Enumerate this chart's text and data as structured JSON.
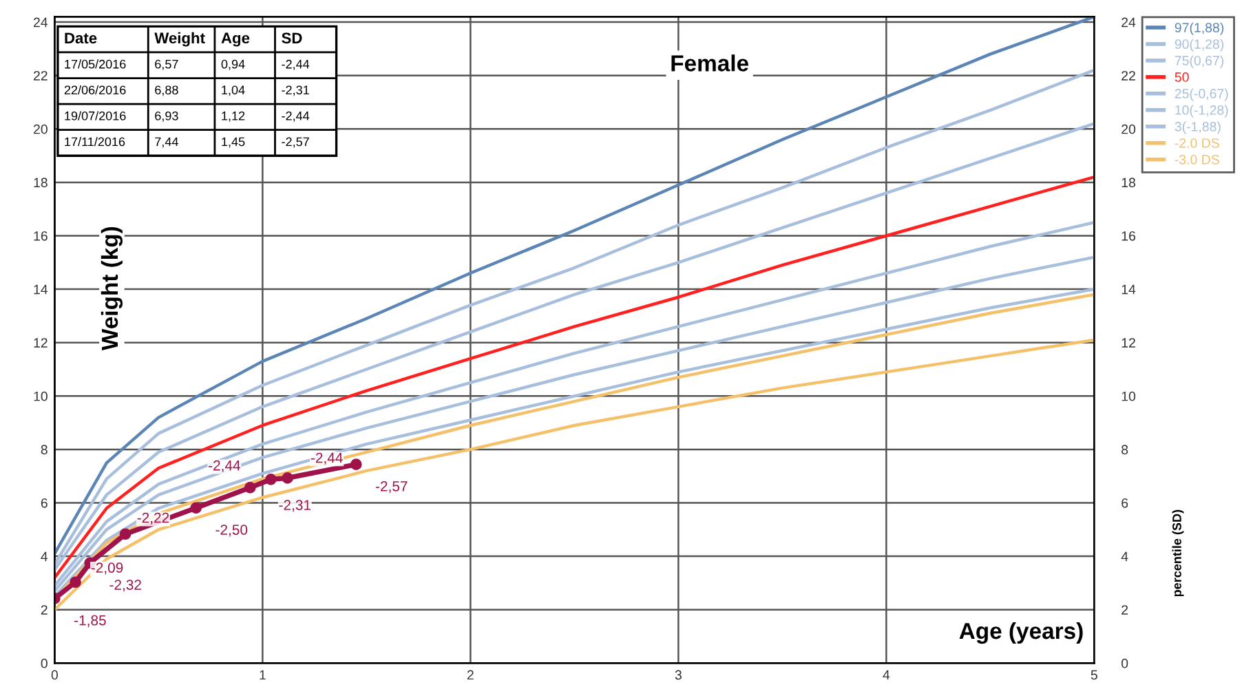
{
  "chart_data": {
    "type": "line",
    "title": "Female",
    "xlabel": "Age (years)",
    "ylabel": "Weight (kg)",
    "y2label": "percentile (SD)",
    "annotations": [
      "Date",
      "Weight",
      "Age",
      "SD",
      "17/05/2016",
      "6,57",
      "0,94",
      "-2,44",
      "22/06/2016",
      "6,88",
      "1,04",
      "-2,31",
      "19/07/2016",
      "6,93",
      "1,12",
      "-2,44",
      "17/11/2016",
      "7,44",
      "1,45",
      "-2,57",
      {
        "text": "-1,85",
        "x": 0,
        "y": 2.42
      },
      {
        "text": "-2,09",
        "x": 0.1,
        "y": 3.03
      },
      {
        "text": "-2,32",
        "x": 0.17,
        "y": 3.75
      },
      {
        "text": "-2,22",
        "x": 0.34,
        "y": 4.83
      },
      {
        "text": "-2,50",
        "x": 0.68,
        "y": 5.81
      },
      {
        "text": "-2,44",
        "x": 0.94,
        "y": 6.57
      },
      {
        "text": "-2,31",
        "x": 1.04,
        "y": 6.88
      },
      {
        "text": "-2,44",
        "x": 1.12,
        "y": 6.93
      },
      {
        "text": "-2,57",
        "x": 1.45,
        "y": 7.44
      }
    ],
    "xlim": [
      0,
      5
    ],
    "xticks": [
      0,
      1,
      2,
      3,
      4,
      5
    ],
    "ylim": [
      0,
      24.2
    ],
    "yticks": [
      0,
      2,
      4,
      6,
      8,
      10,
      12,
      14,
      16,
      18,
      20,
      22,
      24
    ],
    "y2lim": [
      0,
      24.2
    ],
    "y2ticks": [
      0,
      2,
      4,
      6,
      8,
      10,
      12,
      14,
      16,
      18,
      20,
      22,
      24
    ],
    "grid": true,
    "legend": "right",
    "marker": "none",
    "line_style": "solid",
    "x": [
      0,
      0.25,
      0.5,
      1,
      1.5,
      2,
      2.5,
      3,
      3.5,
      4,
      4.5,
      5
    ],
    "series": [
      {
        "name": "97(1,88)",
        "color": "#5b85b5",
        "values": [
          4.1,
          7.5,
          9.2,
          11.3,
          12.9,
          14.6,
          16.2,
          17.9,
          19.6,
          21.2,
          22.8,
          24.2
        ]
      },
      {
        "name": "90(1,28)",
        "color": "#a7bfdc",
        "values": [
          3.7,
          6.9,
          8.6,
          10.4,
          11.9,
          13.4,
          14.8,
          16.4,
          17.8,
          19.3,
          20.7,
          22.2
        ]
      },
      {
        "name": "75(0,67)",
        "color": "#a7bfdc",
        "values": [
          3.5,
          6.3,
          7.9,
          9.6,
          11.0,
          12.4,
          13.8,
          15.0,
          16.3,
          17.6,
          18.9,
          20.2
        ]
      },
      {
        "name": "50",
        "color": "#ff2020",
        "values": [
          3.2,
          5.8,
          7.3,
          8.9,
          10.2,
          11.4,
          12.6,
          13.7,
          14.9,
          16.0,
          17.1,
          18.2
        ]
      },
      {
        "name": "25(-0,67)",
        "color": "#a7bfdc",
        "values": [
          2.9,
          5.3,
          6.7,
          8.2,
          9.4,
          10.5,
          11.6,
          12.6,
          13.6,
          14.6,
          15.6,
          16.5
        ]
      },
      {
        "name": "10(-1,28)",
        "color": "#a7bfdc",
        "values": [
          2.7,
          5.0,
          6.3,
          7.7,
          8.8,
          9.8,
          10.8,
          11.7,
          12.6,
          13.5,
          14.4,
          15.2
        ]
      },
      {
        "name": "3(-1,88)",
        "color": "#a7bfdc",
        "values": [
          2.5,
          4.6,
          5.8,
          7.1,
          8.2,
          9.1,
          10.0,
          10.9,
          11.7,
          12.5,
          13.3,
          14.0
        ]
      },
      {
        "name": "-2.0 DS",
        "color": "#f5c06a",
        "values": [
          2.4,
          4.5,
          5.6,
          6.9,
          7.9,
          8.9,
          9.8,
          10.7,
          11.5,
          12.3,
          13.1,
          13.8
        ]
      },
      {
        "name": "-3.0 DS",
        "color": "#f5c06a",
        "values": [
          2.0,
          3.9,
          5.0,
          6.2,
          7.2,
          8.0,
          8.9,
          9.6,
          10.3,
          10.9,
          11.5,
          12.1
        ]
      },
      {
        "type": "line",
        "marker": "circle",
        "color": "#a0134a",
        "x": [
          0,
          0.1,
          0.17,
          0.34,
          0.68,
          0.94,
          1.04,
          1.12,
          1.45
        ],
        "values": [
          2.42,
          3.03,
          3.75,
          4.83,
          5.81,
          6.57,
          6.88,
          6.93,
          7.44
        ]
      }
    ]
  }
}
